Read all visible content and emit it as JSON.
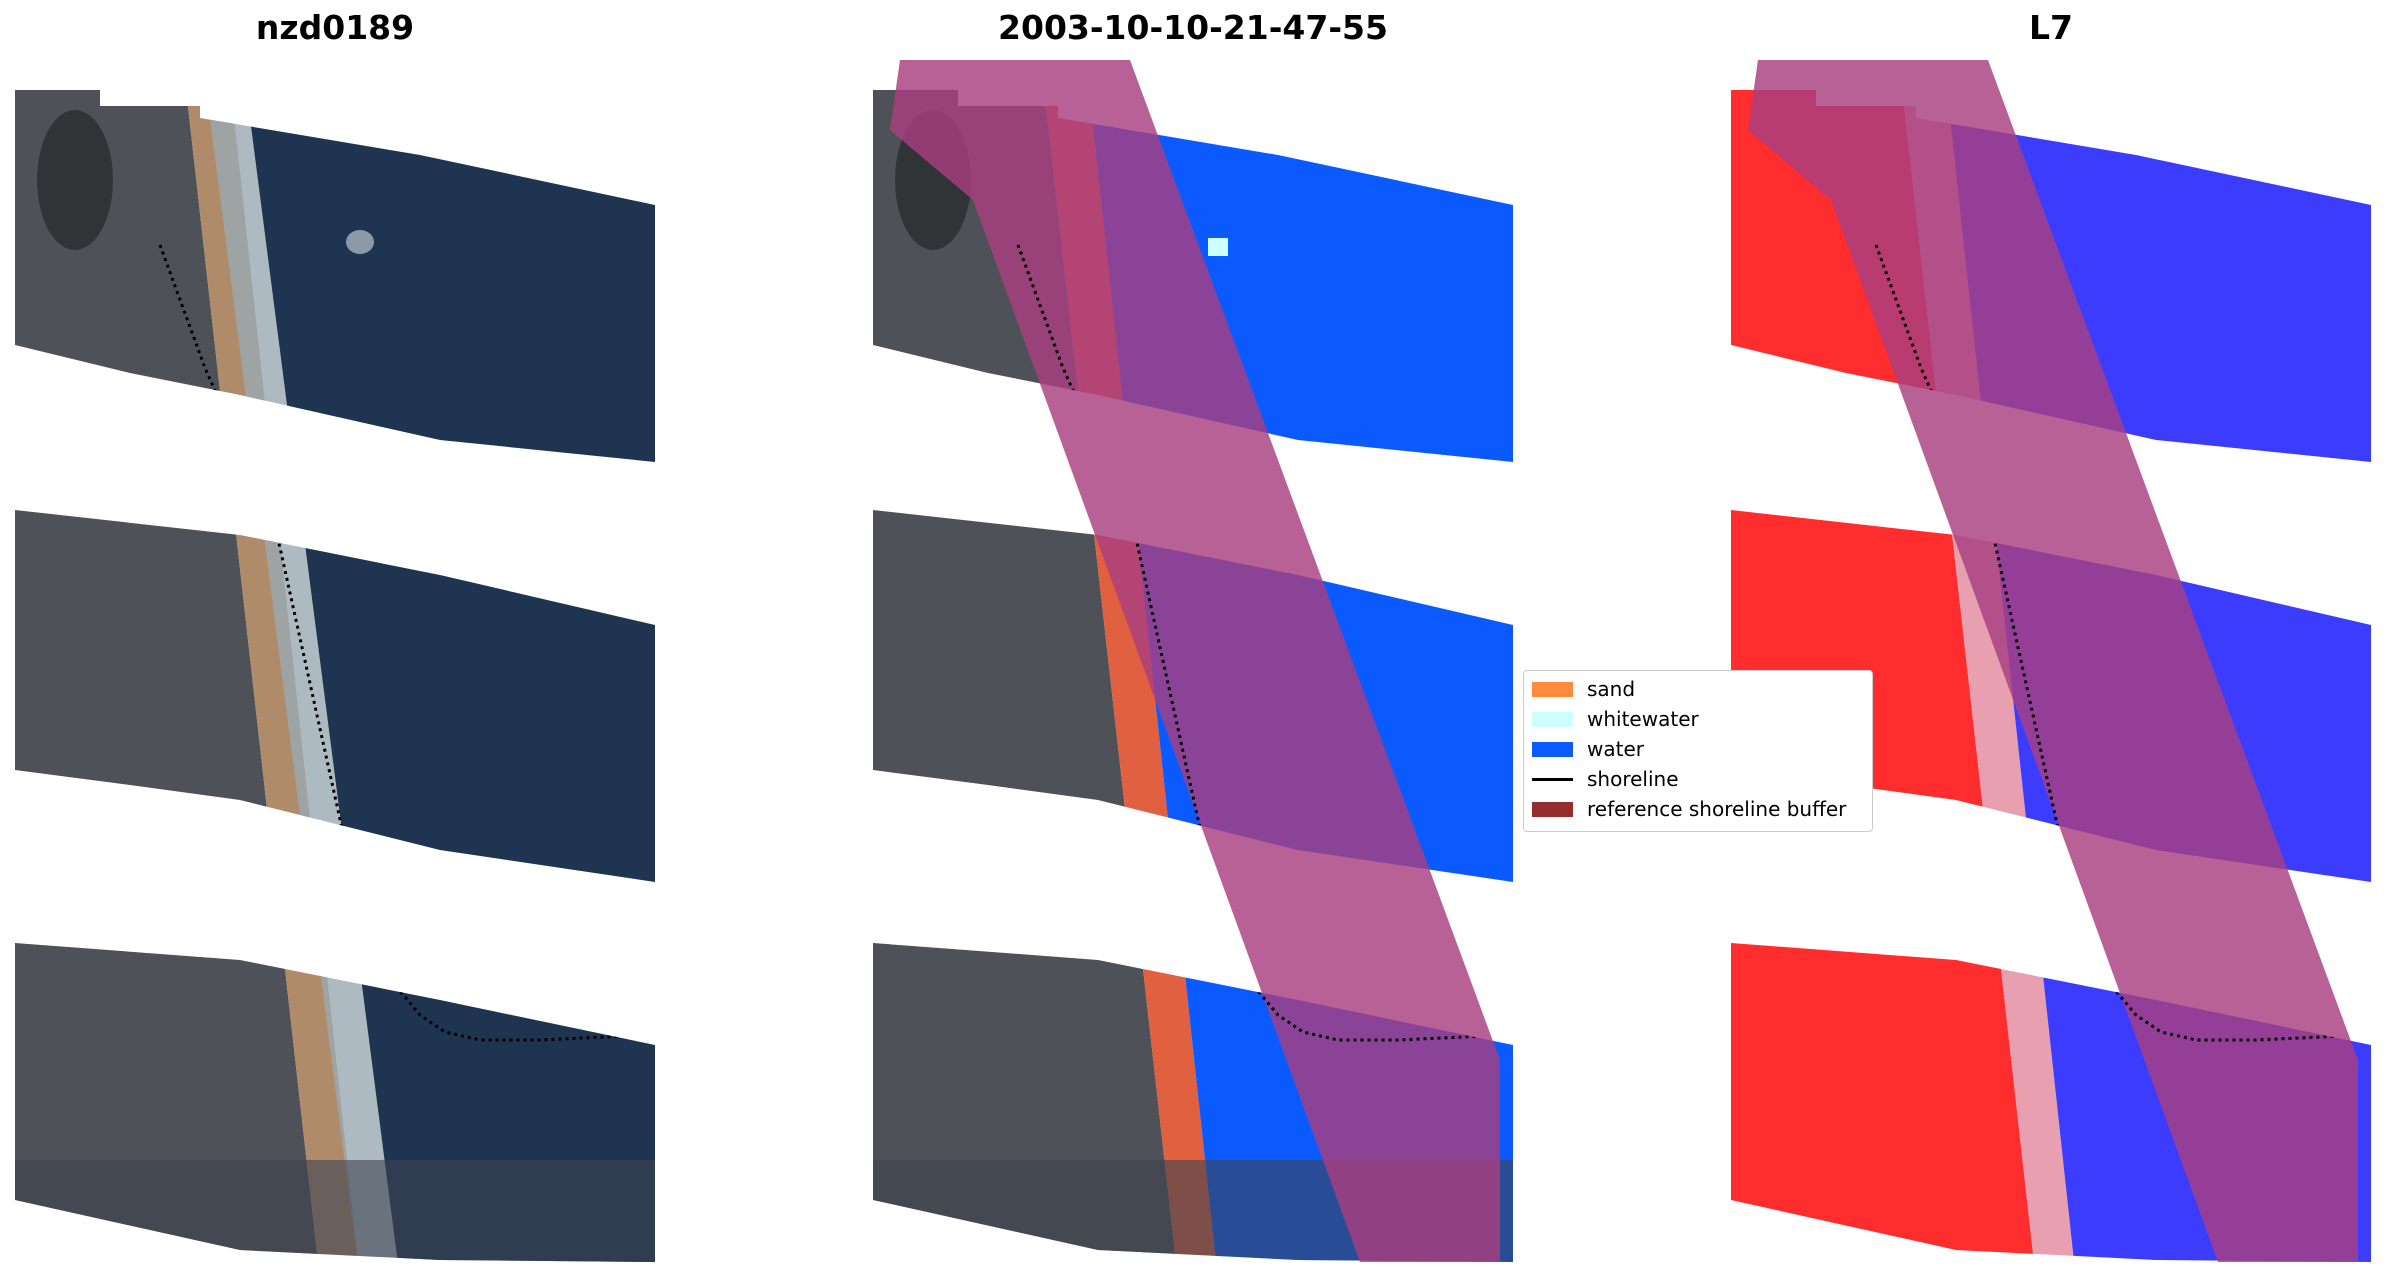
{
  "panels": [
    {
      "title": "nzd0189"
    },
    {
      "title": "2003-10-10-21-47-55"
    },
    {
      "title": "L7"
    }
  ],
  "legend": {
    "items": [
      {
        "label": "sand",
        "color": "#ff8c3c"
      },
      {
        "label": "whitewater",
        "color": "#ccffff"
      },
      {
        "label": "water",
        "color": "#0a5aff"
      },
      {
        "label": "shoreline",
        "color": "#000000"
      },
      {
        "label": "reference shoreline buffer",
        "color": "#962d2d"
      }
    ]
  },
  "colors": {
    "imagery_water": "#1e3450",
    "imagery_land": "#4e5258",
    "imagery_sand": "#b08b6a",
    "class_water": "#0a5aff",
    "buffer_overlay": "#a83e80",
    "mndwi_land": "#ff2d2d",
    "mndwi_water": "#3c3cff"
  }
}
